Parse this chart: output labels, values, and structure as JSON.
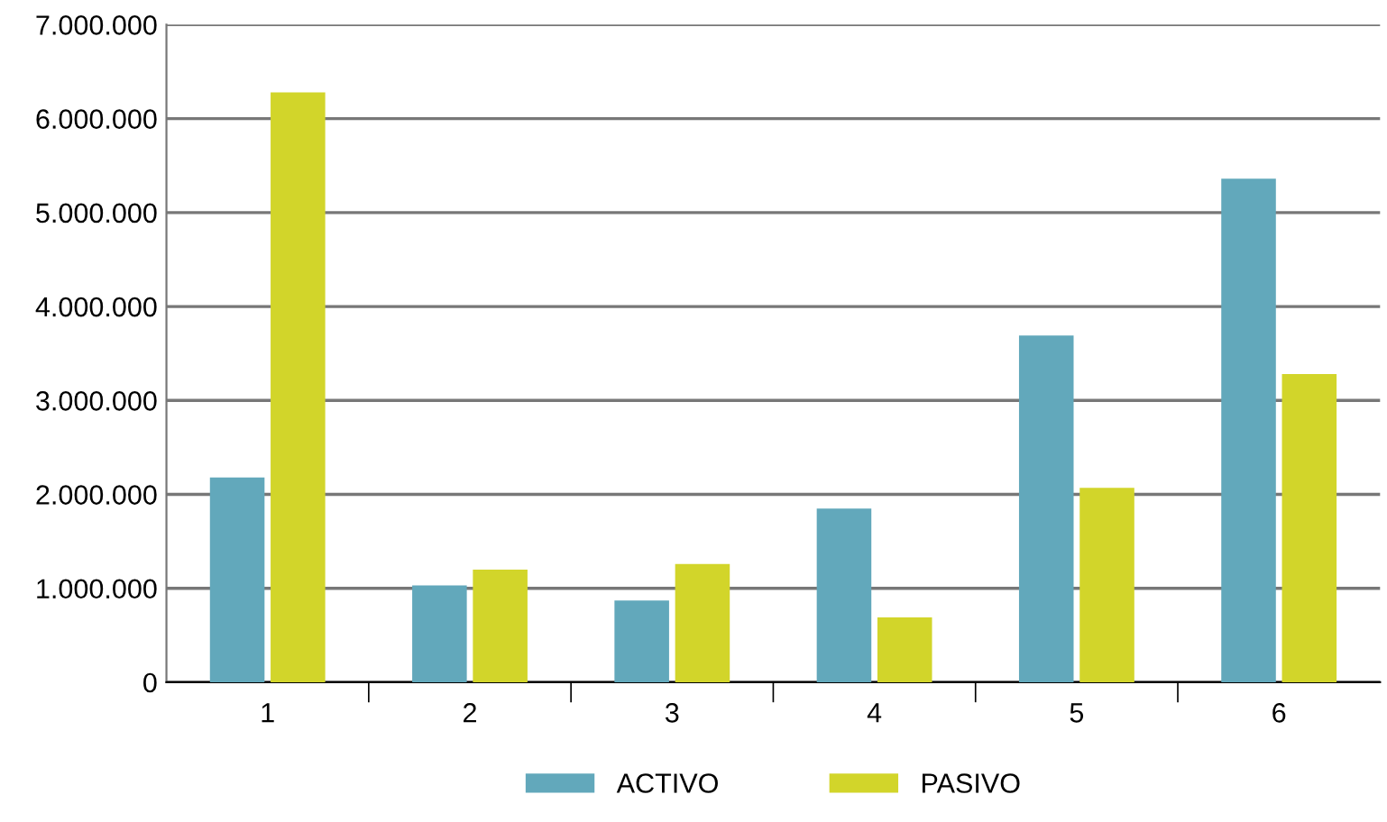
{
  "chart_data": {
    "type": "bar",
    "categories": [
      "1",
      "2",
      "3",
      "4",
      "5",
      "6"
    ],
    "series": [
      {
        "name": "ACTIVO",
        "color": "#62a8bb",
        "values": [
          2180000,
          1030000,
          870000,
          1850000,
          3690000,
          5360000
        ]
      },
      {
        "name": "PASIVO",
        "color": "#d2d52a",
        "values": [
          6280000,
          1200000,
          1260000,
          690000,
          2070000,
          3280000
        ]
      }
    ],
    "ylim": [
      0,
      7000000
    ],
    "yticks": [
      {
        "value": 0,
        "label": "0"
      },
      {
        "value": 1000000,
        "label": "1.000.000"
      },
      {
        "value": 2000000,
        "label": "2.000.000"
      },
      {
        "value": 3000000,
        "label": "3.000.000"
      },
      {
        "value": 4000000,
        "label": "4.000.000"
      },
      {
        "value": 5000000,
        "label": "5.000.000"
      },
      {
        "value": 6000000,
        "label": "6.000.000"
      },
      {
        "value": 7000000,
        "label": "7.000.000"
      }
    ],
    "grid": "y",
    "legend": "bottom"
  }
}
